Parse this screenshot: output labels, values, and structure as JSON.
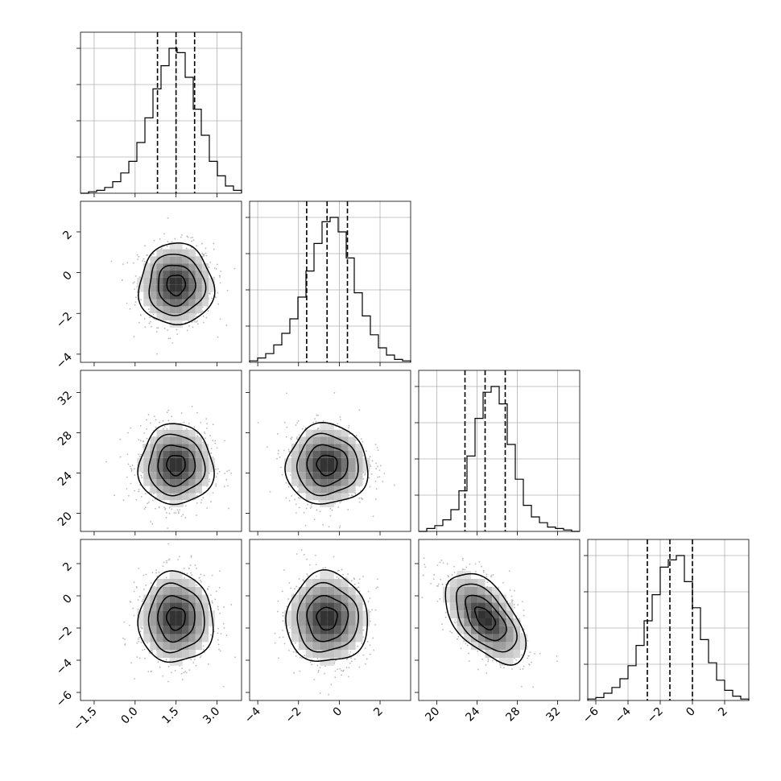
{
  "chart_data": {
    "type": "corner",
    "grid": true,
    "parameters": [
      {
        "mean": 1.5,
        "sd": 0.68,
        "lim": [
          -2.0,
          3.9
        ],
        "ticks": [
          -1.5,
          0.0,
          1.5,
          3.0
        ],
        "tick_labels": [
          "−1.5",
          "0.0",
          "1.5",
          "3.0"
        ],
        "quantiles": [
          0.82,
          1.5,
          2.18
        ]
      },
      {
        "mean": -0.6,
        "sd": 1.0,
        "lim": [
          -4.4,
          3.5
        ],
        "ticks": [
          -4,
          -2,
          0,
          2
        ],
        "tick_labels": [
          "−4",
          "−2",
          "0",
          "2"
        ],
        "quantiles": [
          -1.6,
          -0.6,
          0.4
        ]
      },
      {
        "mean": 24.8,
        "sd": 2.0,
        "lim": [
          18.2,
          34.2
        ],
        "ticks": [
          20,
          24,
          28,
          32
        ],
        "tick_labels": [
          "20",
          "24",
          "28",
          "32"
        ],
        "quantiles": [
          22.8,
          24.8,
          26.8
        ]
      },
      {
        "mean": -1.4,
        "sd": 1.4,
        "lim": [
          -6.5,
          3.5
        ],
        "ticks": [
          -6,
          -4,
          -2,
          0,
          2
        ],
        "tick_labels": [
          "−6",
          "−4",
          "−2",
          "0",
          "2"
        ],
        "quantiles": [
          -2.8,
          -1.4,
          0.0
        ]
      }
    ],
    "correlations": {
      "0-1": 0.0,
      "0-2": 0.0,
      "0-3": 0.0,
      "1-2": 0.0,
      "1-3": 0.0,
      "2-3": -0.55
    },
    "histograms": [
      {
        "param": 0,
        "edges_start": -2.0,
        "bin_width": 0.295,
        "counts": [
          0,
          1,
          2,
          4,
          8,
          14,
          22,
          35,
          52,
          72,
          88,
          100,
          97,
          80,
          58,
          40,
          22,
          12,
          5,
          2
        ]
      },
      {
        "param": 1,
        "edges_start": -4.4,
        "bin_width": 0.395,
        "counts": [
          1,
          3,
          6,
          12,
          20,
          30,
          45,
          63,
          82,
          97,
          100,
          90,
          72,
          48,
          32,
          19,
          10,
          5,
          2,
          1
        ]
      },
      {
        "param": 2,
        "edges_start": 18.2,
        "bin_width": 0.8,
        "counts": [
          0,
          2,
          4,
          8,
          15,
          28,
          52,
          78,
          96,
          100,
          88,
          60,
          36,
          18,
          10,
          6,
          3,
          2,
          1,
          0
        ]
      },
      {
        "param": 3,
        "edges_start": -6.5,
        "bin_width": 0.5,
        "counts": [
          1,
          2,
          5,
          9,
          15,
          24,
          38,
          55,
          73,
          92,
          97,
          100,
          82,
          64,
          42,
          26,
          14,
          7,
          3,
          1
        ]
      }
    ],
    "contour_levels_sigma": [
      0.5,
      1.0,
      1.5,
      2.0
    ]
  }
}
